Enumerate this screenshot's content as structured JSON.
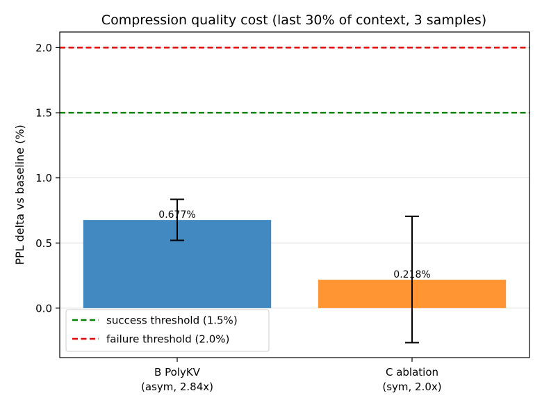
{
  "chart_data": {
    "type": "bar",
    "title": "Compression quality cost (last 30% of context, 3 samples)",
    "xlabel": "",
    "ylabel": "PPL delta vs baseline (%)",
    "ylim": [
      -0.38,
      2.12
    ],
    "yticks": [
      {
        "value": 0.0,
        "label": "0.0"
      },
      {
        "value": 0.5,
        "label": "0.5"
      },
      {
        "value": 1.0,
        "label": "1.0"
      },
      {
        "value": 1.5,
        "label": "1.5"
      },
      {
        "value": 2.0,
        "label": "2.0"
      }
    ],
    "grid": true,
    "bars": [
      {
        "line1": "B PolyKV",
        "line2": "(asym, 2.84x)",
        "value": 0.677,
        "label": "0.677%",
        "err_low": 0.52,
        "err_high": 0.835,
        "color": "#4189c0"
      },
      {
        "line1": "C ablation",
        "line2": "(sym, 2.0x)",
        "value": 0.218,
        "label": "0.218%",
        "err_low": -0.265,
        "err_high": 0.705,
        "color": "#ff9533"
      }
    ],
    "thresholds": [
      {
        "value": 1.5,
        "name": "success threshold (1.5%)",
        "color": "#008000"
      },
      {
        "value": 2.0,
        "name": "failure threshold (2.0%)",
        "color": "#e00000"
      }
    ],
    "legend_position": "lower-left"
  }
}
